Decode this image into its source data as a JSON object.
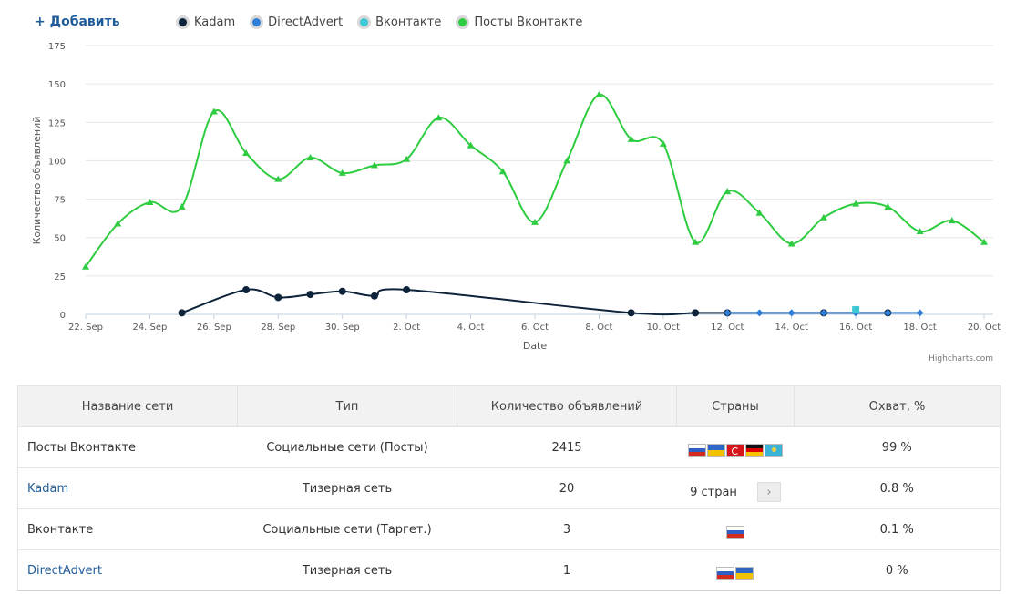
{
  "toolbar": {
    "add_label": "+ Добавить"
  },
  "chart_data": {
    "type": "line",
    "title": "",
    "xlabel": "Date",
    "ylabel": "Количество объявлений",
    "ylim": [
      0,
      175
    ],
    "yticks": [
      0,
      25,
      50,
      75,
      100,
      125,
      150,
      175
    ],
    "x_start": "2015-09-22",
    "x_tick_labels": [
      "22. Sep",
      "24. Sep",
      "26. Sep",
      "28. Sep",
      "30. Sep",
      "2. Oct",
      "4. Oct",
      "6. Oct",
      "8. Oct",
      "10. Oct",
      "12. Oct",
      "14. Oct",
      "16. Oct",
      "18. Oct",
      "20. Oct"
    ],
    "legend_position": "top-left",
    "grid": true,
    "credits": "Highcharts.com",
    "series": [
      {
        "name": "Kadam",
        "color": "#0d233a",
        "marker": "circle",
        "spline": true,
        "points": [
          [
            "2015-09-25",
            1
          ],
          [
            "2015-09-27",
            16
          ],
          [
            "2015-09-28",
            11
          ],
          [
            "2015-09-29",
            13
          ],
          [
            "2015-09-30",
            15
          ],
          [
            "2015-10-01",
            12
          ],
          [
            "2015-10-02",
            16
          ],
          [
            "2015-10-09",
            1
          ],
          [
            "2015-10-11",
            1
          ],
          [
            "2015-10-12",
            1
          ],
          [
            "2015-10-15",
            1
          ],
          [
            "2015-10-17",
            1
          ]
        ]
      },
      {
        "name": "DirectAdvert",
        "color": "#2f7ed8",
        "marker": "diamond",
        "spline": false,
        "points": [
          [
            "2015-10-12",
            1
          ],
          [
            "2015-10-13",
            1
          ],
          [
            "2015-10-14",
            1
          ],
          [
            "2015-10-15",
            1
          ],
          [
            "2015-10-16",
            1
          ],
          [
            "2015-10-17",
            1
          ],
          [
            "2015-10-18",
            1
          ]
        ]
      },
      {
        "name": "Вконтакте",
        "color": "#40c8d8",
        "marker": "square",
        "spline": false,
        "points": [
          [
            "2015-10-16",
            3
          ]
        ]
      },
      {
        "name": "Посты Вконтакте",
        "color": "#2ecc40",
        "marker": "triangle",
        "spline": true,
        "points": [
          [
            "2015-09-22",
            31
          ],
          [
            "2015-09-23",
            59
          ],
          [
            "2015-09-24",
            73
          ],
          [
            "2015-09-25",
            70
          ],
          [
            "2015-09-26",
            132
          ],
          [
            "2015-09-27",
            105
          ],
          [
            "2015-09-28",
            88
          ],
          [
            "2015-09-29",
            102
          ],
          [
            "2015-09-30",
            92
          ],
          [
            "2015-10-01",
            97
          ],
          [
            "2015-10-02",
            101
          ],
          [
            "2015-10-03",
            128
          ],
          [
            "2015-10-04",
            110
          ],
          [
            "2015-10-05",
            93
          ],
          [
            "2015-10-06",
            60
          ],
          [
            "2015-10-07",
            100
          ],
          [
            "2015-10-08",
            143
          ],
          [
            "2015-10-09",
            114
          ],
          [
            "2015-10-10",
            111
          ],
          [
            "2015-10-11",
            47
          ],
          [
            "2015-10-12",
            80
          ],
          [
            "2015-10-13",
            66
          ],
          [
            "2015-10-14",
            46
          ],
          [
            "2015-10-15",
            63
          ],
          [
            "2015-10-16",
            72
          ],
          [
            "2015-10-17",
            70
          ],
          [
            "2015-10-18",
            54
          ],
          [
            "2015-10-19",
            61
          ],
          [
            "2015-10-20",
            47
          ]
        ]
      }
    ]
  },
  "table": {
    "headers": [
      "Название сети",
      "Тип",
      "Количество объявлений",
      "Страны",
      "Охват, %"
    ],
    "rows": [
      {
        "name": "Посты Вконтакте",
        "type": "Социальные сети (Посты)",
        "count": "2415",
        "countries": [
          "ru",
          "ua",
          "tr",
          "de",
          "kz"
        ],
        "coverage": "99 %",
        "link": false
      },
      {
        "name": "Kadam",
        "type": "Тизерная сеть",
        "count": "20",
        "countries_text": "9 стран",
        "coverage": "0.8 %",
        "link": true
      },
      {
        "name": "Вконтакте",
        "type": "Социальные сети (Таргет.)",
        "count": "3",
        "countries": [
          "ru"
        ],
        "coverage": "0.1 %",
        "link": false
      },
      {
        "name": "DirectAdvert",
        "type": "Тизерная сеть",
        "count": "1",
        "countries": [
          "ru",
          "ua"
        ],
        "coverage": "0 %",
        "link": true
      }
    ]
  }
}
